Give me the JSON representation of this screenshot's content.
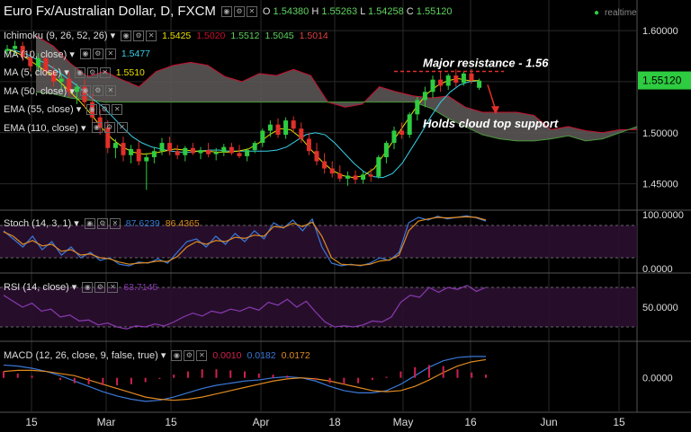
{
  "header": {
    "title": "Euro Fx/Australian Dollar, D, FXCM",
    "ohlc": [
      {
        "k": "O",
        "v": "1.54380"
      },
      {
        "k": "H",
        "v": "1.55263"
      },
      {
        "k": "L",
        "v": "1.54258"
      },
      {
        "k": "C",
        "v": "1.55120"
      }
    ],
    "realtime": "realtime"
  },
  "studies": [
    {
      "name": "Ichimoku (9, 26, 52, 26)",
      "values": [
        {
          "v": "1.5425",
          "c": "#e8e000"
        },
        {
          "v": "1.5020",
          "c": "#c8102e"
        },
        {
          "v": "1.5512",
          "c": "#5fd35f"
        },
        {
          "v": "1.5045",
          "c": "#5fd35f"
        },
        {
          "v": "1.5014",
          "c": "#e04040"
        }
      ]
    },
    {
      "name": "MA (10, close)",
      "values": [
        {
          "v": "1.5477",
          "c": "#38d0e8"
        }
      ]
    },
    {
      "name": "MA (5, close)",
      "values": [
        {
          "v": "1.5510",
          "c": "#e8e000"
        }
      ]
    },
    {
      "name": "MA (50, close)",
      "values": []
    },
    {
      "name": "EMA (55, close)",
      "values": []
    },
    {
      "name": "EMA (110, close)",
      "values": []
    }
  ],
  "price_axis": {
    "ticks": [
      "1.60000",
      "1.55000",
      "1.50000",
      "1.45000"
    ],
    "last": "1.55120"
  },
  "annotations": {
    "resistance": "Major resistance - 1.56",
    "support": "Holds cloud top support"
  },
  "stoch": {
    "name": "Stoch (14, 3, 1)",
    "values": [
      {
        "v": "87.6239",
        "c": "#3a78d8"
      },
      {
        "v": "86.4365",
        "c": "#e08a20"
      }
    ],
    "ticks": [
      "100.0000",
      "0.0000"
    ]
  },
  "rsi": {
    "name": "RSI (14, close)",
    "values": [
      {
        "v": "63.7145",
        "c": "#8a3ab0"
      }
    ],
    "ticks": [
      "50.0000"
    ]
  },
  "macd": {
    "name": "MACD (12, 26, close, 9, false, true)",
    "values": [
      {
        "v": "0.0010",
        "c": "#d02050"
      },
      {
        "v": "0.0182",
        "c": "#3a78d8"
      },
      {
        "v": "0.0172",
        "c": "#e08a20"
      }
    ],
    "ticks": [
      "0.0000"
    ]
  },
  "time_axis": [
    "15",
    "Mar",
    "15",
    "Apr",
    "18",
    "May",
    "16",
    "Jun",
    "15"
  ],
  "colors": {
    "bull": "#2ecc40",
    "bear": "#e0302a",
    "cloud": "#5a5555",
    "cloud_edge_top": "#c8102e",
    "cloud_edge_bot": "#4a9a3a",
    "ma10": "#38d0e8",
    "ma5": "#e8e000",
    "grid": "#2a2a2a"
  },
  "chart_data": [
    {
      "type": "candlestick",
      "title": "Euro Fx/Australian Dollar, D, FXCM",
      "ylim": [
        1.425,
        1.63
      ],
      "candles": [
        [
          1.58,
          1.586,
          1.574,
          1.582
        ],
        [
          1.582,
          1.59,
          1.575,
          1.585
        ],
        [
          1.585,
          1.589,
          1.57,
          1.574
        ],
        [
          1.574,
          1.58,
          1.56,
          1.565
        ],
        [
          1.565,
          1.578,
          1.56,
          1.573
        ],
        [
          1.573,
          1.577,
          1.555,
          1.56
        ],
        [
          1.56,
          1.566,
          1.545,
          1.55
        ],
        [
          1.55,
          1.558,
          1.54,
          1.553
        ],
        [
          1.553,
          1.56,
          1.535,
          1.54
        ],
        [
          1.54,
          1.548,
          1.528,
          1.545
        ],
        [
          1.545,
          1.552,
          1.525,
          1.53
        ],
        [
          1.53,
          1.538,
          1.51,
          1.515
        ],
        [
          1.515,
          1.523,
          1.498,
          1.505
        ],
        [
          1.505,
          1.512,
          1.48,
          1.485
        ],
        [
          1.485,
          1.494,
          1.475,
          1.49
        ],
        [
          1.49,
          1.496,
          1.472,
          1.478
        ],
        [
          1.478,
          1.488,
          1.47,
          1.484
        ],
        [
          1.484,
          1.492,
          1.468,
          1.472
        ],
        [
          1.472,
          1.48,
          1.444,
          1.476
        ],
        [
          1.476,
          1.486,
          1.47,
          1.482
        ],
        [
          1.482,
          1.495,
          1.478,
          1.49
        ],
        [
          1.49,
          1.496,
          1.478,
          1.482
        ],
        [
          1.482,
          1.488,
          1.474,
          1.478
        ],
        [
          1.478,
          1.487,
          1.472,
          1.485
        ],
        [
          1.485,
          1.49,
          1.478,
          1.48
        ],
        [
          1.48,
          1.486,
          1.474,
          1.483
        ],
        [
          1.483,
          1.49,
          1.476,
          1.479
        ],
        [
          1.479,
          1.485,
          1.473,
          1.481
        ],
        [
          1.481,
          1.489,
          1.477,
          1.486
        ],
        [
          1.486,
          1.49,
          1.478,
          1.48
        ],
        [
          1.48,
          1.488,
          1.475,
          1.477
        ],
        [
          1.477,
          1.485,
          1.472,
          1.483
        ],
        [
          1.483,
          1.492,
          1.48,
          1.49
        ],
        [
          1.49,
          1.504,
          1.486,
          1.502
        ],
        [
          1.502,
          1.512,
          1.496,
          1.508
        ],
        [
          1.508,
          1.514,
          1.495,
          1.498
        ],
        [
          1.498,
          1.515,
          1.494,
          1.512
        ],
        [
          1.512,
          1.516,
          1.5,
          1.504
        ],
        [
          1.504,
          1.51,
          1.49,
          1.494
        ],
        [
          1.494,
          1.5,
          1.478,
          1.482
        ],
        [
          1.482,
          1.49,
          1.468,
          1.472
        ],
        [
          1.472,
          1.48,
          1.46,
          1.465
        ],
        [
          1.465,
          1.472,
          1.456,
          1.46
        ],
        [
          1.46,
          1.468,
          1.452,
          1.455
        ],
        [
          1.455,
          1.462,
          1.448,
          1.458
        ],
        [
          1.458,
          1.463,
          1.45,
          1.454
        ],
        [
          1.454,
          1.462,
          1.45,
          1.459
        ],
        [
          1.459,
          1.465,
          1.452,
          1.457
        ],
        [
          1.457,
          1.478,
          1.455,
          1.476
        ],
        [
          1.476,
          1.492,
          1.47,
          1.49
        ],
        [
          1.49,
          1.506,
          1.484,
          1.502
        ],
        [
          1.502,
          1.51,
          1.494,
          1.498
        ],
        [
          1.498,
          1.52,
          1.495,
          1.518
        ],
        [
          1.518,
          1.535,
          1.512,
          1.532
        ],
        [
          1.532,
          1.545,
          1.525,
          1.54
        ],
        [
          1.54,
          1.556,
          1.534,
          1.552
        ],
        [
          1.552,
          1.56,
          1.54,
          1.546
        ],
        [
          1.546,
          1.558,
          1.542,
          1.556
        ],
        [
          1.556,
          1.562,
          1.545,
          1.549
        ],
        [
          1.549,
          1.56,
          1.546,
          1.558
        ],
        [
          1.558,
          1.562,
          1.548,
          1.551
        ],
        [
          1.544,
          1.553,
          1.542,
          1.551
        ]
      ],
      "cloud_top": [
        1.595,
        1.585,
        1.568,
        1.555,
        1.56,
        1.552,
        1.545,
        1.56,
        1.566,
        1.569,
        1.566,
        1.555,
        1.55,
        1.558,
        1.556,
        1.562,
        1.556,
        1.53,
        1.525,
        1.528,
        1.545,
        1.54,
        1.536,
        1.534,
        1.536,
        1.525,
        1.52,
        1.52,
        1.52,
        1.517,
        1.503,
        1.506,
        1.502,
        1.5,
        1.503,
        1.503
      ],
      "cloud_bottom": [
        1.54,
        1.538,
        1.534,
        1.532,
        1.53,
        1.53,
        1.53,
        1.53,
        1.53,
        1.53,
        1.53,
        1.53,
        1.53,
        1.53,
        1.53,
        1.53,
        1.53,
        1.53,
        1.53,
        1.53,
        1.53,
        1.53,
        1.53,
        1.524,
        1.514,
        1.506,
        1.498,
        1.494,
        1.492,
        1.492,
        1.494,
        1.497,
        1.492,
        1.494,
        1.5,
        1.506
      ],
      "ma10": [
        1.582,
        1.58,
        1.577,
        1.572,
        1.568,
        1.562,
        1.555,
        1.548,
        1.54,
        1.532,
        1.525,
        1.515,
        1.505,
        1.496,
        1.49,
        1.486,
        1.484,
        1.482,
        1.481,
        1.481,
        1.482,
        1.483,
        1.483,
        1.482,
        1.482,
        1.482,
        1.482,
        1.482,
        1.483,
        1.486,
        1.492,
        1.498,
        1.5,
        1.498,
        1.49,
        1.48,
        1.47,
        1.462,
        1.457,
        1.456,
        1.46,
        1.47,
        1.485,
        1.5,
        1.516,
        1.53,
        1.54,
        1.547,
        1.55,
        1.551
      ],
      "ma5": [
        1.582,
        1.578,
        1.572,
        1.565,
        1.558,
        1.55,
        1.54,
        1.53,
        1.518,
        1.505,
        1.494,
        1.486,
        1.481,
        1.479,
        1.48,
        1.482,
        1.484,
        1.483,
        1.482,
        1.482,
        1.481,
        1.481,
        1.482,
        1.484,
        1.49,
        1.498,
        1.504,
        1.503,
        1.495,
        1.483,
        1.472,
        1.463,
        1.458,
        1.456,
        1.458,
        1.465,
        1.48,
        1.495,
        1.51,
        1.525,
        1.538,
        1.546,
        1.551,
        1.553,
        1.551,
        1.551
      ]
    },
    {
      "type": "line",
      "name": "Stoch (14, 3, 1)",
      "ylim": [
        0,
        100
      ],
      "series": [
        {
          "values": [
            70,
            55,
            40,
            60,
            35,
            50,
            25,
            40,
            20,
            30,
            15,
            20,
            8,
            5,
            12,
            10,
            18,
            10,
            30,
            50,
            55,
            40,
            60,
            45,
            65,
            50,
            70,
            55,
            85,
            75,
            90,
            70,
            92,
            40,
            10,
            5,
            8,
            5,
            10,
            20,
            15,
            30,
            85,
            95,
            90,
            97,
            92,
            95,
            98,
            94,
            88
          ]
        },
        {
          "values": [
            68,
            60,
            45,
            52,
            42,
            45,
            32,
            35,
            25,
            27,
            20,
            18,
            12,
            8,
            10,
            11,
            14,
            13,
            22,
            40,
            50,
            45,
            52,
            50,
            58,
            56,
            62,
            60,
            78,
            76,
            84,
            78,
            86,
            60,
            20,
            8,
            7,
            6,
            8,
            14,
            16,
            25,
            70,
            88,
            92,
            95,
            94,
            95,
            96,
            95,
            90
          ]
        }
      ]
    },
    {
      "type": "line",
      "name": "RSI (14, close)",
      "ylim": [
        20,
        80
      ],
      "series": [
        {
          "values": [
            62,
            56,
            50,
            54,
            46,
            48,
            40,
            42,
            36,
            37,
            32,
            34,
            30,
            28,
            31,
            30,
            33,
            31,
            35,
            40,
            44,
            41,
            46,
            44,
            48,
            46,
            50,
            47,
            55,
            52,
            58,
            50,
            56,
            45,
            35,
            30,
            31,
            30,
            32,
            36,
            35,
            40,
            55,
            62,
            60,
            70,
            65,
            70,
            68,
            72,
            66,
            70
          ]
        }
      ]
    },
    {
      "type": "line",
      "name": "MACD (12, 26, close, 9, false, true)",
      "ylim": [
        -0.028,
        0.03
      ],
      "series": [
        {
          "values": [
            0.012,
            0.011,
            0.009,
            0.006,
            0.002,
            -0.003,
            -0.008,
            -0.013,
            -0.017,
            -0.02,
            -0.022,
            -0.021,
            -0.018,
            -0.014,
            -0.01,
            -0.007,
            -0.005,
            -0.003,
            -0.002,
            0.0,
            0.001,
            0.0,
            -0.003,
            -0.008,
            -0.012,
            -0.014,
            -0.014,
            -0.012,
            -0.006,
            0.002,
            0.01,
            0.016,
            0.019,
            0.02,
            0.02
          ]
        },
        {
          "values": [
            0.006,
            0.007,
            0.007,
            0.006,
            0.004,
            0.002,
            -0.002,
            -0.006,
            -0.01,
            -0.014,
            -0.018,
            -0.02,
            -0.021,
            -0.02,
            -0.018,
            -0.015,
            -0.012,
            -0.009,
            -0.006,
            -0.003,
            -0.001,
            0.0,
            -0.001,
            -0.003,
            -0.006,
            -0.009,
            -0.012,
            -0.013,
            -0.012,
            -0.008,
            -0.002,
            0.005,
            0.011,
            0.015,
            0.017
          ]
        }
      ]
    }
  ]
}
